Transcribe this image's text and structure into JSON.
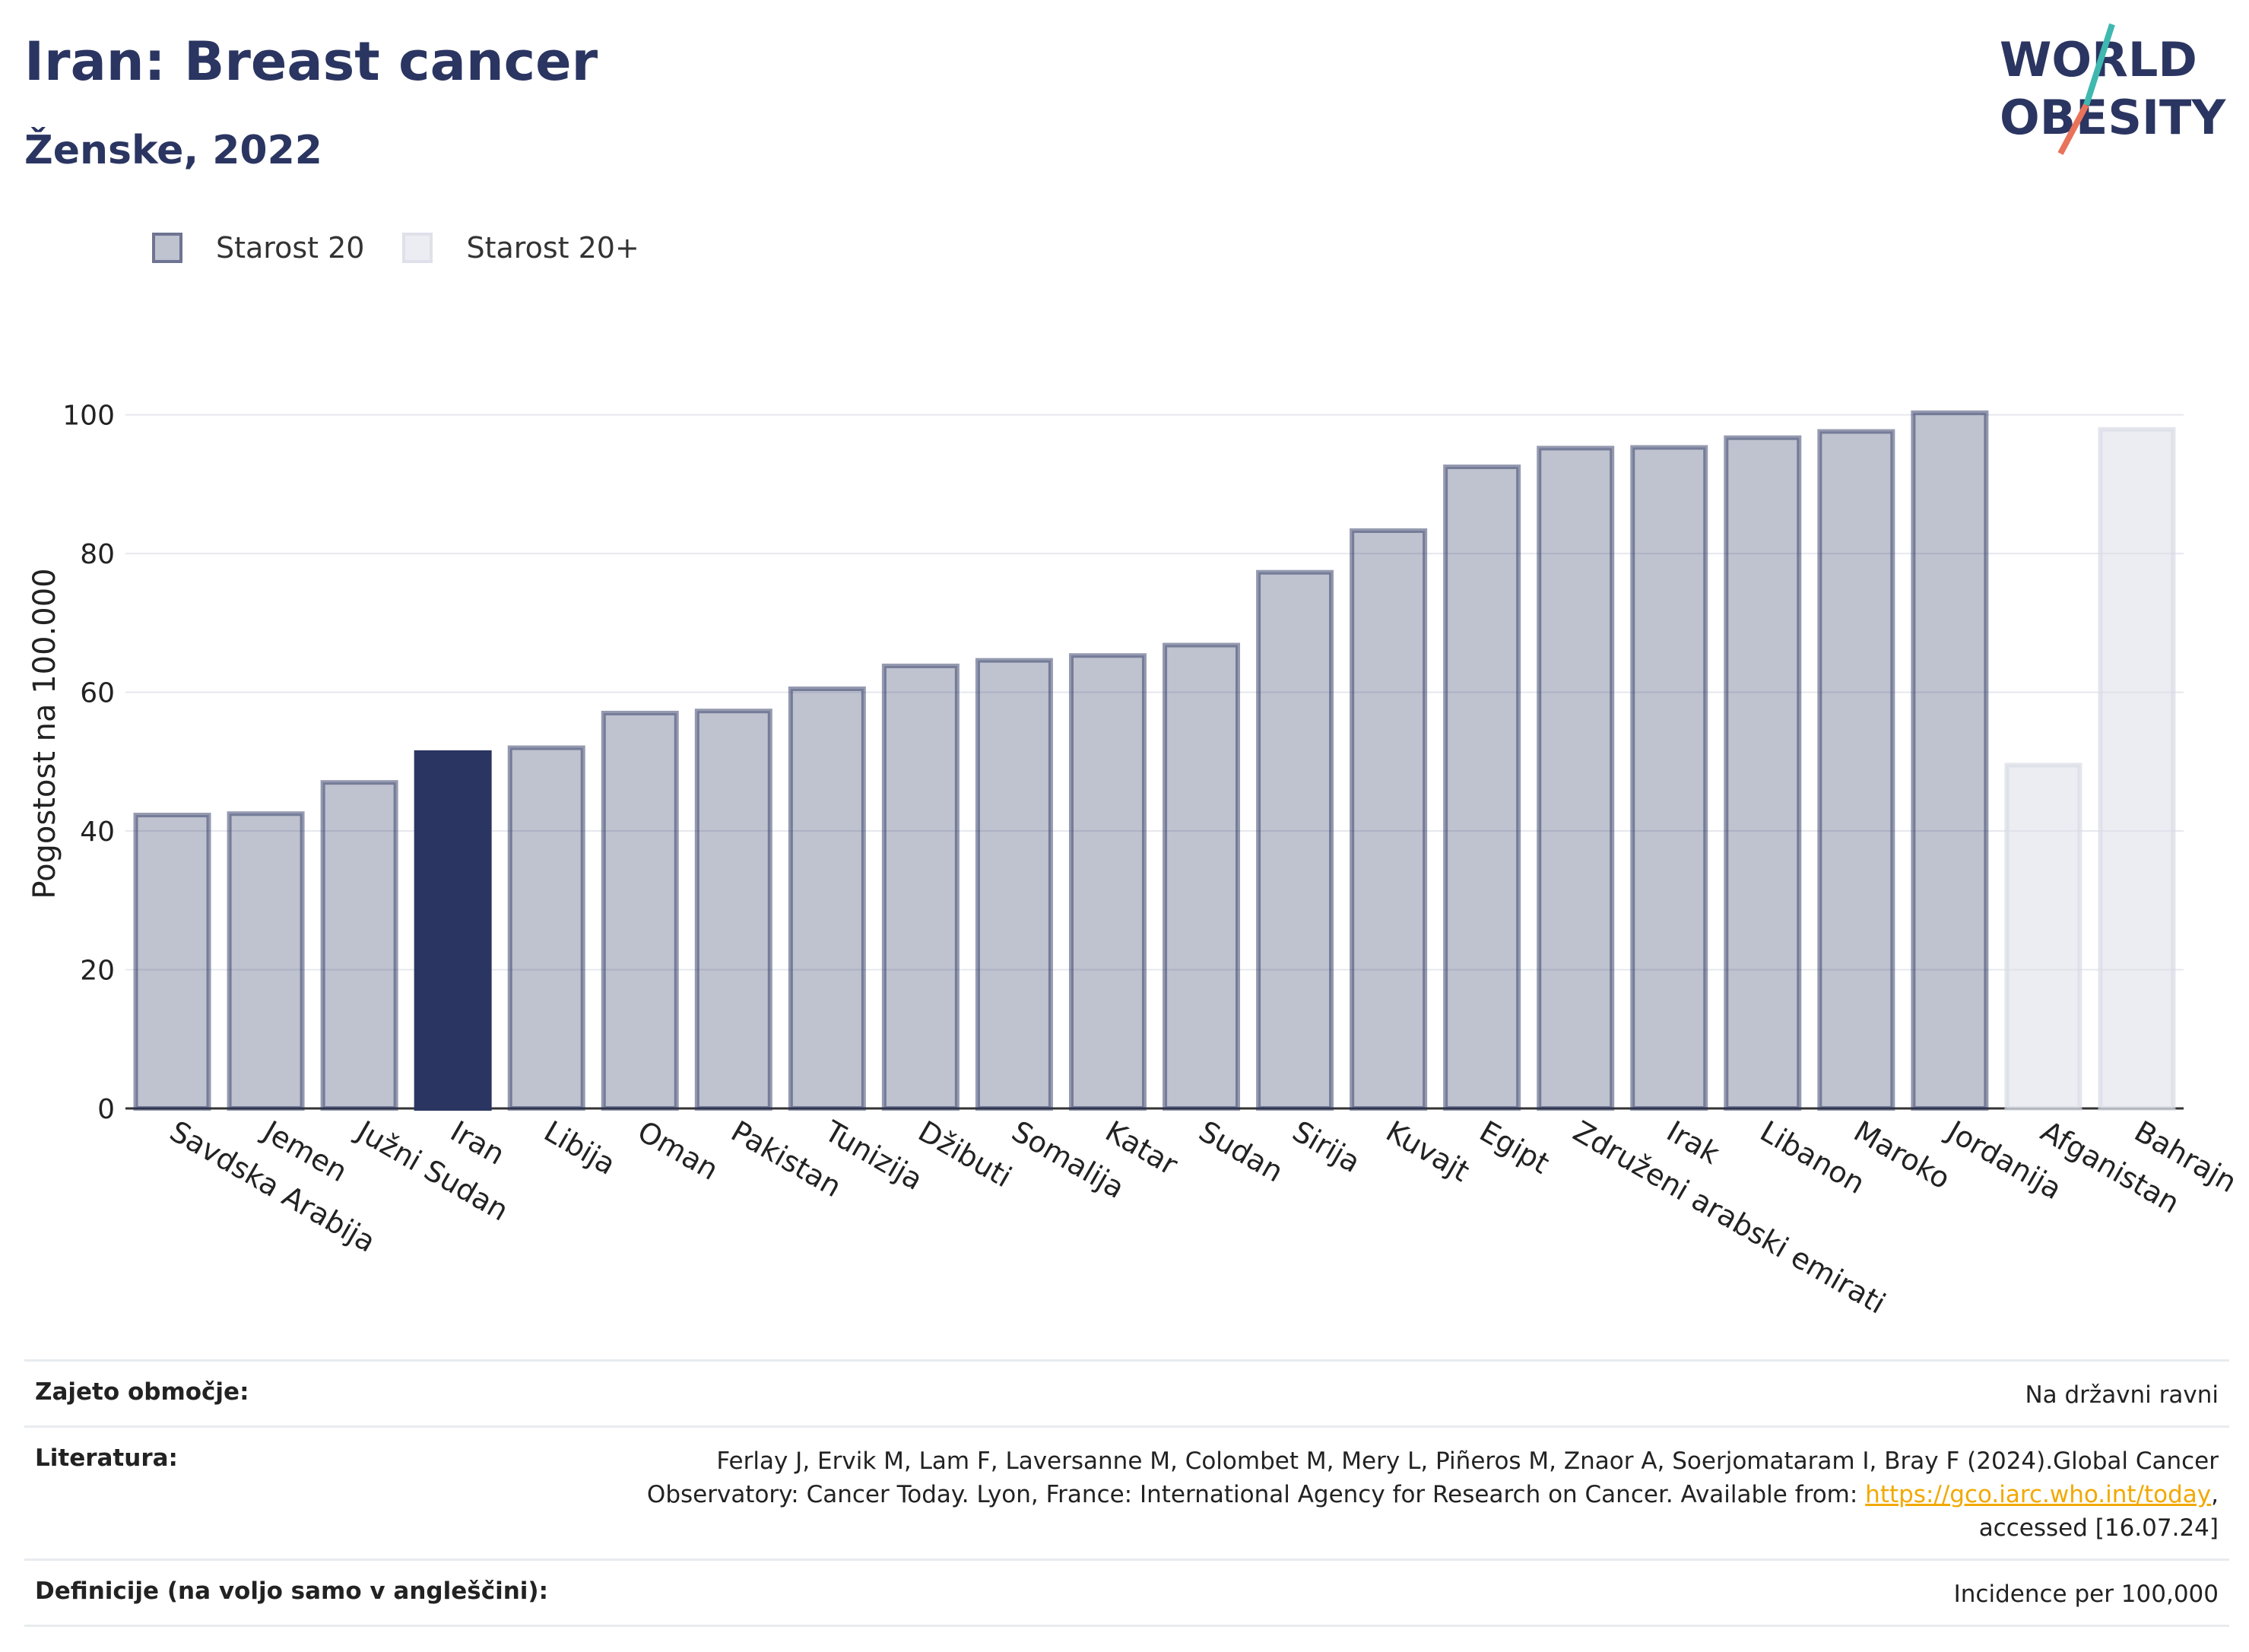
{
  "header": {
    "title": "Iran: Breast cancer",
    "subtitle": "Ženske, 2022"
  },
  "logo": {
    "line1": "WORLD",
    "line2": "OBESITY"
  },
  "legend": [
    {
      "label": "Starost 20",
      "color": "#2b3561",
      "opacity": 0.3
    },
    {
      "label": "Starost 20+",
      "color": "#d9dce5",
      "opacity": 0.5
    }
  ],
  "chart_data": {
    "type": "bar",
    "ylabel": "Pogostost na 100.000",
    "xlabel": "",
    "ylim": [
      0,
      105
    ],
    "yticks": [
      0,
      20,
      40,
      60,
      80,
      100
    ],
    "grid": true,
    "legend_position": "top-left",
    "highlight": "Iran",
    "highlight_color": "#2b3561",
    "categories": [
      "Savdska Arabija",
      "Jemen",
      "Južni Sudan",
      "Iran",
      "Libija",
      "Oman",
      "Pakistan",
      "Tunizija",
      "Džibuti",
      "Somalija",
      "Katar",
      "Sudan",
      "Sirija",
      "Kuvajt",
      "Egipt",
      "Združeni arabski emirati",
      "Irak",
      "Libanon",
      "Maroko",
      "Jordanija",
      "Afganistan",
      "Bahrajn"
    ],
    "series": [
      {
        "name": "Starost 20",
        "values": [
          42.3,
          42.5,
          47,
          51.3,
          52,
          57,
          57.3,
          60.5,
          63.8,
          64.6,
          65.3,
          66.8,
          77.3,
          83.3,
          92.5,
          95.2,
          95.3,
          96.7,
          97.6,
          100.3,
          null,
          null
        ]
      },
      {
        "name": "Starost 20+",
        "values": [
          null,
          null,
          null,
          null,
          null,
          null,
          null,
          null,
          null,
          null,
          null,
          null,
          null,
          null,
          null,
          null,
          null,
          null,
          null,
          null,
          49.5,
          97.9
        ]
      }
    ]
  },
  "footer": {
    "rows": [
      {
        "label": "Zajeto območje:",
        "lines": [
          "Na državni ravni"
        ]
      },
      {
        "label": "Literatura:",
        "lines": [
          "Ferlay J, Ervik M, Lam F, Laversanne M, Colombet M, Mery L, Piñeros M, Znaor A, Soerjomataram I, Bray F (2024).Global Cancer",
          "Observatory: Cancer Today. Lyon, France: International Agency for Research on Cancer. Available from: ",
          "accessed [16.07.24]"
        ],
        "link": "https://gco.iarc.who.int/today",
        "link_suffix": ","
      },
      {
        "label": "Definicije (na voljo samo v angleščini):",
        "lines": [
          "Incidence per 100,000"
        ]
      }
    ]
  }
}
